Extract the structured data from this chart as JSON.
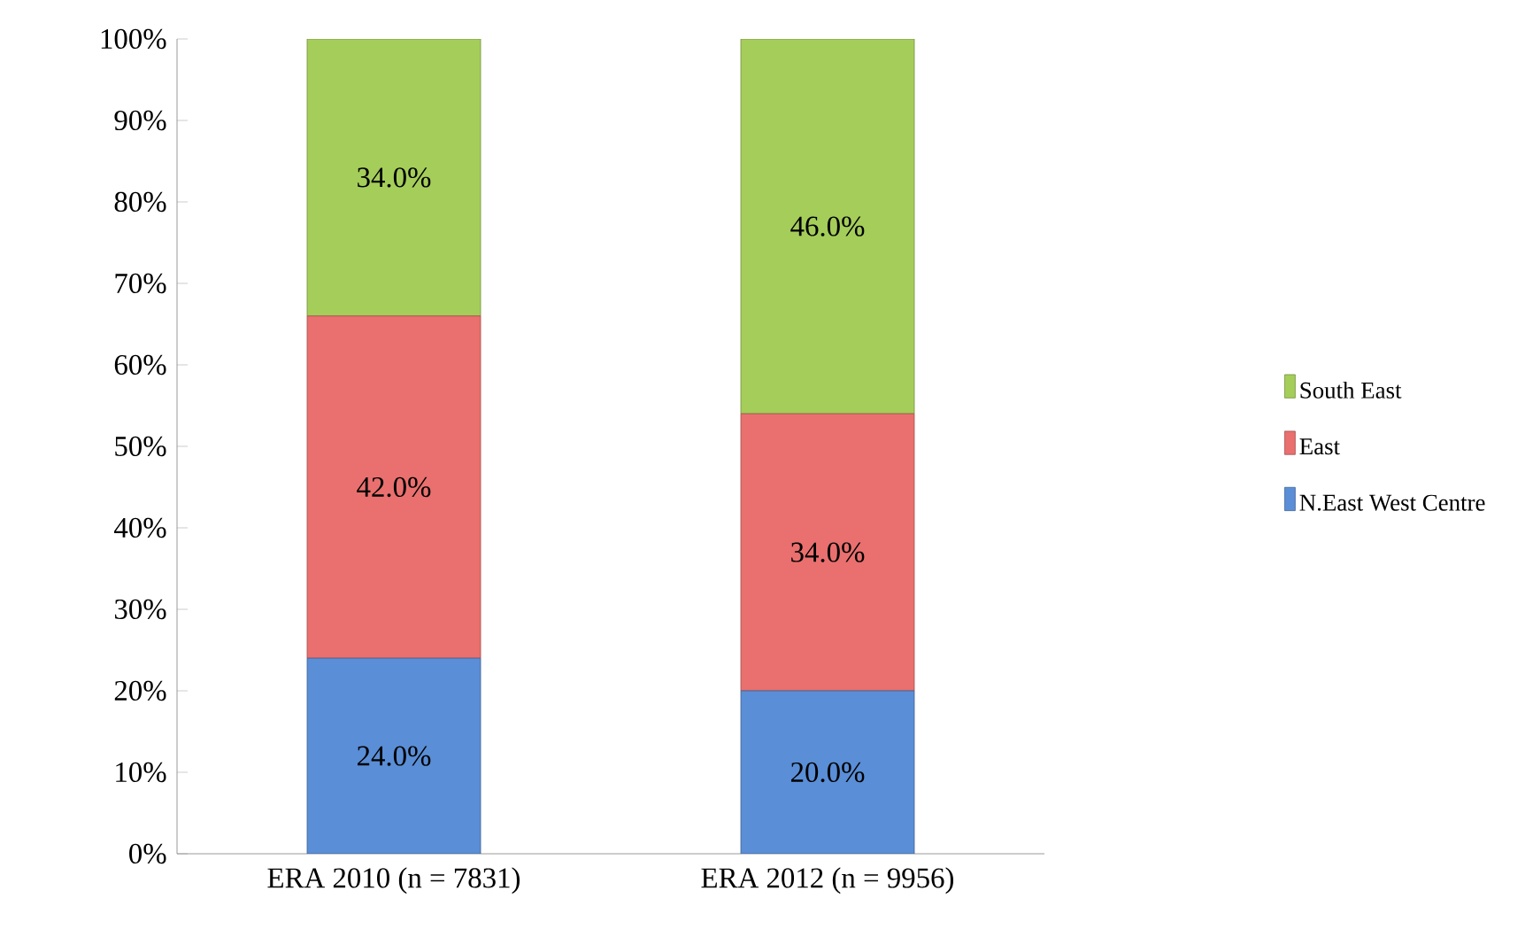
{
  "chart_data": {
    "type": "bar",
    "stacked": true,
    "categories": [
      "ERA 2010 (n = 7831)",
      "ERA 2012 (n = 9956)"
    ],
    "series": [
      {
        "name": "N.East West Centre",
        "color": "#5a8ed6",
        "values": [
          24,
          20
        ],
        "value_labels": [
          "24.0%",
          "20.0%"
        ]
      },
      {
        "name": "East",
        "color": "#e9706e",
        "values": [
          42,
          34
        ],
        "value_labels": [
          "42.0%",
          "34.0%"
        ]
      },
      {
        "name": "South East",
        "color": "#a5cd5a",
        "values": [
          34,
          46
        ],
        "value_labels": [
          "34.0%",
          "46.0%"
        ]
      }
    ],
    "ylim": [
      0,
      100
    ],
    "yticks": [
      {
        "value": 0,
        "label": "0%"
      },
      {
        "value": 10,
        "label": "10%"
      },
      {
        "value": 20,
        "label": "20%"
      },
      {
        "value": 30,
        "label": "30%"
      },
      {
        "value": 40,
        "label": "40%"
      },
      {
        "value": 50,
        "label": "50%"
      },
      {
        "value": 60,
        "label": "60%"
      },
      {
        "value": 70,
        "label": "70%"
      },
      {
        "value": 80,
        "label": "80%"
      },
      {
        "value": 90,
        "label": "90%"
      },
      {
        "value": 100,
        "label": "100%"
      }
    ],
    "legend": "right"
  }
}
